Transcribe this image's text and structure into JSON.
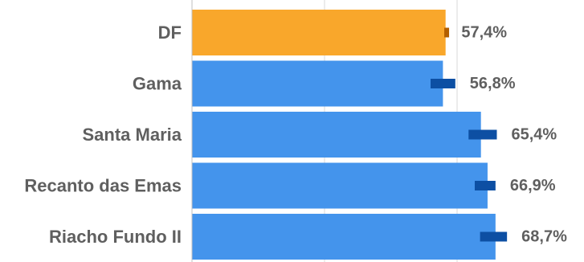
{
  "chart_data": {
    "type": "bar",
    "orientation": "horizontal",
    "categories": [
      "DF",
      "Gama",
      "Santa Maria",
      "Recanto das Emas",
      "Riacho Fundo II"
    ],
    "values": [
      57.4,
      56.8,
      65.4,
      66.9,
      68.7
    ],
    "value_labels": [
      "57,4%",
      "56,8%",
      "65,4%",
      "66,9%",
      "68,7%"
    ],
    "error_ranges": [
      [
        57.1,
        57.7
      ],
      [
        54.0,
        59.6
      ],
      [
        62.6,
        69.0
      ],
      [
        64.0,
        68.7
      ],
      [
        65.2,
        71.3
      ]
    ],
    "highlight_category": "DF",
    "xlim": [
      0,
      87
    ],
    "gridlines_x": [
      30,
      60
    ],
    "colors": {
      "bar_highlight": "#F9A72B",
      "bar_default": "#4494EC",
      "error_highlight": "#B35F00",
      "error_default": "#0D4FA3",
      "gridline": "#D9D9D9",
      "axis": "#BFBFBF",
      "label_text": "#5F5F5F"
    },
    "title": "",
    "xlabel": "",
    "ylabel": "",
    "legend": "none",
    "grid": "vertical"
  }
}
